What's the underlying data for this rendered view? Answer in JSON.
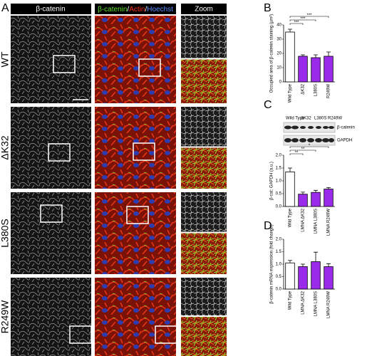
{
  "panel_labels": [
    "A",
    "B",
    "C",
    "D"
  ],
  "image_headers": {
    "single": "β-catenin",
    "merged": [
      "β-catenin",
      "/",
      "Actin",
      "/",
      "Hoechst"
    ],
    "zoom": "Zoom"
  },
  "row_labels": [
    "WT",
    "ΔK32",
    "L380S",
    "R249W"
  ],
  "blot": {
    "lanes": [
      "Wild Type",
      "ΔK32",
      "L380S",
      "R249W"
    ],
    "bands": [
      "β-catenin",
      "GAPDH"
    ]
  },
  "chart_data": [
    {
      "type": "bar",
      "ylabel": "Occupied area of β-catenin staining (µm²)",
      "categories": [
        "Wild Type",
        "ΔK32",
        "L380S",
        "R249W"
      ],
      "values": [
        35,
        18,
        17,
        18
      ],
      "errors": [
        2,
        1,
        2,
        3
      ],
      "colors": [
        "#ffffff",
        "#9a2bea",
        "#9a2bea",
        "#9a2bea"
      ],
      "ylim": [
        0,
        40
      ],
      "yticks": [
        0,
        10,
        20,
        30,
        40
      ],
      "annotations": [
        "***",
        "***",
        "***"
      ]
    },
    {
      "type": "bar",
      "ylabel": "β-cat: GAPDH (a.u.)",
      "categories": [
        "Wild Type",
        "LMNA ΔK32",
        "LMNA L380S",
        "LMNA R249W"
      ],
      "values": [
        1.35,
        0.48,
        0.55,
        0.68
      ],
      "errors": [
        0.15,
        0.08,
        0.08,
        0.06
      ],
      "colors": [
        "#ffffff",
        "#9a2bea",
        "#9a2bea",
        "#9a2bea"
      ],
      "ylim": [
        0,
        2
      ],
      "yticks": [
        {
          "value": 0,
          "label": "0.0"
        },
        0.5,
        {
          "value": 1,
          "label": "1.0"
        },
        1.5,
        {
          "value": 2,
          "label": "2.0"
        }
      ],
      "annotations": [
        "**",
        "**",
        "*"
      ]
    },
    {
      "type": "bar",
      "ylabel": "β-catenin mRNA expression (fold change)",
      "categories": [
        "Wild Type",
        "LMNA ΔK32",
        "LMNA L380S",
        "LMNA R249W"
      ],
      "values": [
        1.05,
        0.9,
        1.1,
        0.9
      ],
      "errors": [
        0.1,
        0.1,
        0.38,
        0.12
      ],
      "colors": [
        "#ffffff",
        "#9a2bea",
        "#9a2bea",
        "#9a2bea"
      ],
      "ylim": [
        0,
        2
      ],
      "yticks": [
        {
          "value": 0,
          "label": "0.0"
        },
        0.5,
        {
          "value": 1,
          "label": "1.0"
        },
        1.5,
        {
          "value": 2,
          "label": "2.0"
        }
      ],
      "annotations": []
    }
  ]
}
